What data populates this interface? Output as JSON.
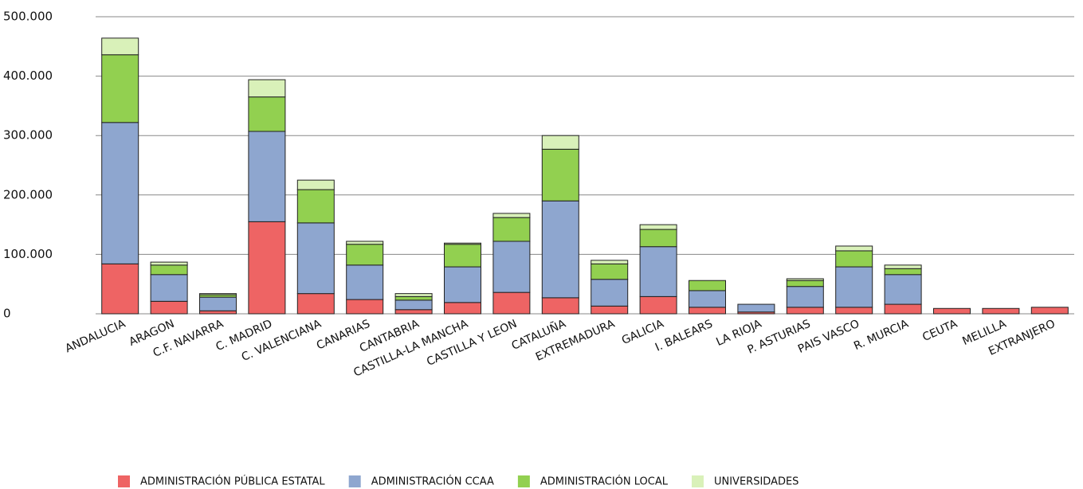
{
  "chart_data": {
    "type": "stacked_bar",
    "categories": [
      "ANDALUCIA",
      "ARAGON",
      "C.F. NAVARRA",
      "C. MADRID",
      "C. VALENCIANA",
      "CANARIAS",
      "CANTABRIA",
      "CASTILLA-LA MANCHA",
      "CASTILLA Y LEON",
      "CATALUÑA",
      "EXTREMADURA",
      "GALICIA",
      "I. BALEARS",
      "LA RIOJA",
      "P. ASTURIAS",
      "PAIS VASCO",
      "R. MURCIA",
      "CEUTA",
      "MELILLA",
      "EXTRANJERO"
    ],
    "series": [
      {
        "name": "ADMINISTRACIÓN PÚBLICA ESTATAL",
        "color": "#ee6464",
        "values": [
          84000,
          21000,
          5000,
          155000,
          34000,
          24000,
          7000,
          19000,
          36000,
          27000,
          13000,
          29000,
          11000,
          3000,
          11000,
          11000,
          16000,
          9000,
          9000,
          11000
        ]
      },
      {
        "name": "ADMINISTRACIÓN CCAA",
        "color": "#8ea6cf",
        "values": [
          238000,
          45000,
          23000,
          152000,
          119000,
          58000,
          16000,
          60000,
          86000,
          163000,
          45000,
          84000,
          28000,
          13000,
          35000,
          68000,
          50000,
          0,
          0,
          0
        ]
      },
      {
        "name": "ADMINISTRACIÓN LOCAL",
        "color": "#92d050",
        "values": [
          114000,
          16000,
          4000,
          58000,
          56000,
          35000,
          6000,
          38000,
          40000,
          87000,
          26000,
          29000,
          17000,
          0,
          10000,
          27000,
          10000,
          0,
          0,
          0
        ]
      },
      {
        "name": "UNIVERSIDADES",
        "color": "#d9f1b9",
        "values": [
          28000,
          5000,
          2000,
          29000,
          16000,
          5000,
          5000,
          2000,
          7000,
          23000,
          6000,
          8000,
          0,
          0,
          3000,
          8000,
          6000,
          0,
          0,
          0
        ]
      }
    ],
    "ylim": [
      0,
      500000
    ],
    "yticks": [
      0,
      {
        "value": 100000,
        "label": "100.000"
      },
      {
        "value": 200000,
        "label": "200.000"
      },
      {
        "value": 300000,
        "label": "300.000"
      },
      {
        "value": 400000,
        "label": "400.000"
      },
      {
        "value": 500000,
        "label": "500.000"
      }
    ],
    "grid": true,
    "legend": "bottom"
  }
}
